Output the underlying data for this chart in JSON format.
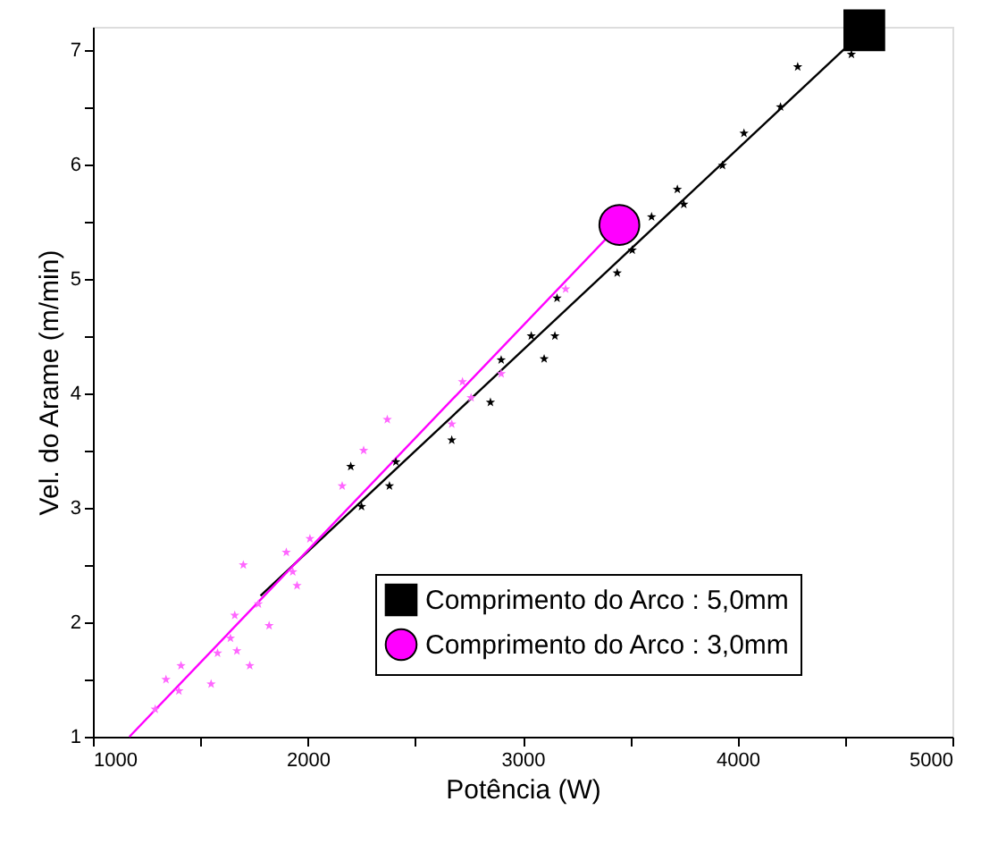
{
  "chart_data": {
    "type": "scatter",
    "xlabel": "Potência (W)",
    "ylabel": "Vel. do Arame (m/min)",
    "xlim": [
      1000,
      5000
    ],
    "xticks": [
      1000,
      {
        "value": 1500,
        "label": null
      },
      2000,
      {
        "value": 2500,
        "label": null
      },
      3000,
      {
        "value": 3500,
        "label": null
      },
      4000,
      {
        "value": 4500,
        "label": null
      },
      5000
    ],
    "ylim": [
      1,
      7.2
    ],
    "yticks": [
      1,
      {
        "value": 1.5,
        "label": null
      },
      2,
      {
        "value": 2.5,
        "label": null
      },
      3,
      {
        "value": 3.5,
        "label": null
      },
      4,
      {
        "value": 4.5,
        "label": null
      },
      5,
      {
        "value": 5.5,
        "label": null
      },
      6,
      {
        "value": 6.5,
        "label": null
      },
      7
    ],
    "grid": false,
    "legend": "bottom right",
    "series": [
      {
        "color": "#000000",
        "marker": "star",
        "x": [
          4530,
          4280,
          4200,
          4030,
          3930,
          3720,
          3750,
          3600,
          3510,
          3440,
          3160,
          3040,
          3150,
          2900,
          3100,
          2850,
          2670,
          2410,
          2380,
          2200,
          2250
        ],
        "values": [
          6.96,
          6.85,
          6.5,
          6.27,
          5.99,
          5.78,
          5.65,
          5.54,
          5.25,
          5.05,
          4.83,
          4.5,
          4.5,
          4.29,
          4.3,
          3.92,
          3.59,
          3.4,
          3.19,
          3.36,
          3.01
        ]
      },
      {
        "color": "#ff66ff",
        "marker": "star",
        "x": [
          3200,
          2720,
          2760,
          2900,
          2670,
          2370,
          2260,
          2160,
          2010,
          1900,
          1700,
          1930,
          1950,
          1770,
          1660,
          1820,
          1640,
          1580,
          1670,
          1410,
          1340,
          1730,
          1550,
          1400,
          1290
        ],
        "values": [
          4.91,
          4.1,
          3.96,
          4.17,
          3.73,
          3.77,
          3.5,
          3.19,
          2.73,
          2.61,
          2.5,
          2.44,
          2.32,
          2.16,
          2.06,
          1.97,
          1.86,
          1.73,
          1.75,
          1.62,
          1.5,
          1.62,
          1.46,
          1.4,
          1.24
        ]
      },
      {
        "type": "line",
        "name": "Comprimento do Arco : 5,0mm",
        "color": "#000000",
        "marker": "square",
        "x": [
          1780,
          4590
        ],
        "values": [
          2.23,
          7.17
        ]
      },
      {
        "type": "line",
        "name": "Comprimento do Arco : 3,0mm",
        "color": "#ff00ff",
        "marker": "circle",
        "x": [
          1170,
          3450
        ],
        "values": [
          1.0,
          5.47
        ]
      }
    ]
  }
}
